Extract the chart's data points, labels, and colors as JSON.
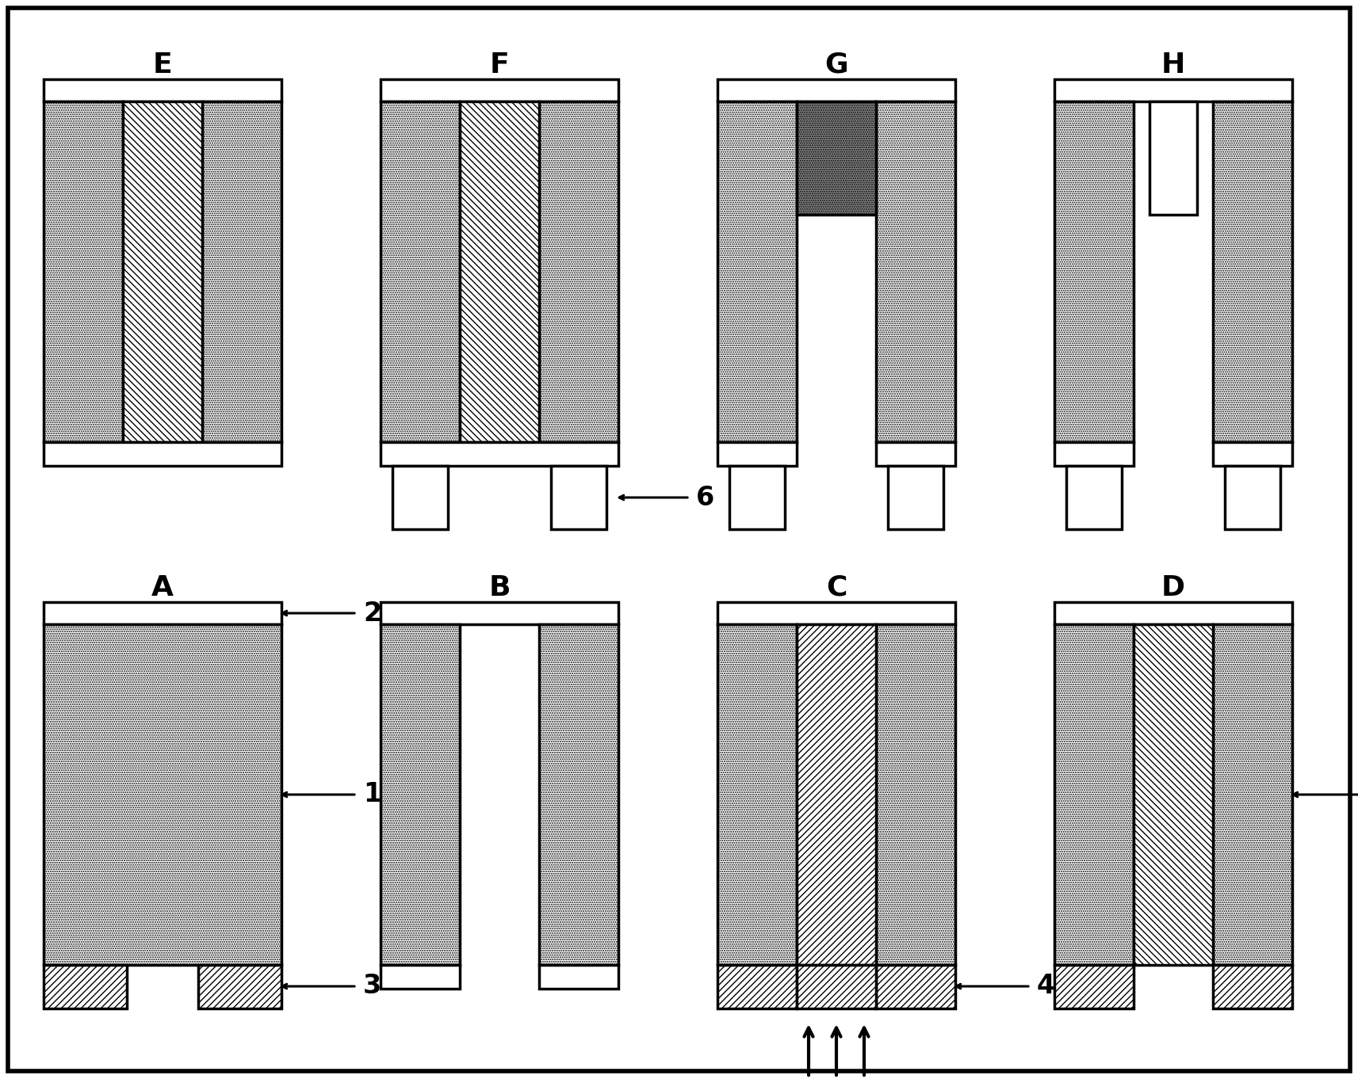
{
  "fig_w": 17.13,
  "fig_h": 13.62,
  "dpi": 100,
  "bg": "#ffffff",
  "lw": 2.5,
  "lw_thick": 3.5,
  "hatch_dot": "......",
  "hatch_fwd": "////",
  "hatch_bkd": "\\\\\\\\",
  "label_fs": 26,
  "annot_fs": 24,
  "panels": [
    "A",
    "B",
    "C",
    "D",
    "E",
    "F",
    "G",
    "H"
  ],
  "panel_label_fs": 26
}
